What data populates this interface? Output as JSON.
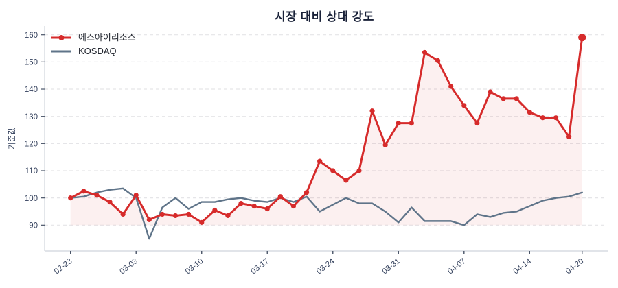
{
  "chart_data": {
    "type": "line",
    "title": "시장 대비 상대 강도",
    "ylabel": "기준값",
    "x_tick_labels": [
      "02-23",
      "03-03",
      "03-10",
      "03-17",
      "03-24",
      "03-31",
      "04-07",
      "04-14",
      "04-20"
    ],
    "x_tick_indices": [
      0,
      5,
      10,
      15,
      20,
      25,
      30,
      35,
      39
    ],
    "n_points": 40,
    "y_ticks": [
      90,
      100,
      110,
      120,
      130,
      140,
      150,
      160
    ],
    "ylim": [
      80,
      163
    ],
    "grid": "horizontal-dashed",
    "legend_position": "top-left-inside",
    "area_baseline": 90,
    "series": [
      {
        "name": "에스아이리소스",
        "color": "#d62b2b",
        "line_width": 3,
        "marker": "circle",
        "area_fill": "rgba(214,43,43,0.07)",
        "last_point_emphasis": true,
        "values": [
          100,
          102.5,
          101,
          98.5,
          94,
          101,
          92,
          94,
          93.5,
          94,
          91,
          95.5,
          93.5,
          98,
          97,
          96,
          100.5,
          97,
          102,
          113.5,
          110,
          106.5,
          110,
          132,
          119.5,
          127.5,
          127.5,
          153.5,
          150.5,
          141,
          134,
          127.5,
          139,
          136.5,
          136.5,
          131.5,
          129.5,
          129.5,
          122.5,
          159
        ]
      },
      {
        "name": "KOSDAQ",
        "color": "#5f7489",
        "line_width": 2.4,
        "marker": "none",
        "values": [
          100,
          100.5,
          102,
          103,
          103.5,
          100,
          85,
          96.5,
          100,
          96,
          98.5,
          98.5,
          99.5,
          100,
          99,
          98.5,
          100,
          98.5,
          100.5,
          95,
          97.5,
          100,
          98,
          98,
          95,
          91,
          96.5,
          91.5,
          91.5,
          91.5,
          90,
          94,
          93,
          94.5,
          95,
          97,
          99,
          100,
          100.5,
          102
        ]
      }
    ]
  },
  "colors": {
    "background": "#ffffff",
    "title_text": "#192138",
    "tick_label": "#33405c",
    "legend_text": "#22262f",
    "axis_line": "#d7dbe2",
    "tick_mark": "#4a5568",
    "gridline": "#e5e5e8"
  }
}
